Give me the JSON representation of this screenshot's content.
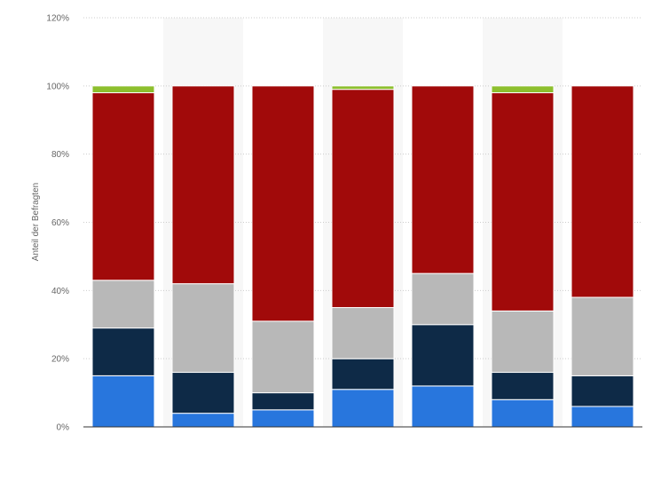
{
  "chart_data": {
    "type": "bar",
    "stacked": true,
    "ylabel": "Anteil der Befragten",
    "ylim": [
      0,
      120
    ],
    "yticks": [
      0,
      20,
      40,
      60,
      80,
      100,
      120
    ],
    "ytick_labels": [
      "0%",
      "20%",
      "40%",
      "60%",
      "80%",
      "100%",
      "120%"
    ],
    "grid": true,
    "categories": [
      "",
      "",
      "",
      "",
      "",
      "",
      ""
    ],
    "series": [
      {
        "color": "#2876dd",
        "values": [
          15,
          4,
          5,
          11,
          12,
          8,
          6
        ]
      },
      {
        "color": "#0e2a47",
        "values": [
          14,
          12,
          5,
          9,
          18,
          8,
          9
        ]
      },
      {
        "color": "#b8b8b8",
        "values": [
          14,
          26,
          21,
          15,
          15,
          18,
          23
        ]
      },
      {
        "color": "#a10a0a",
        "values": [
          55,
          58,
          69,
          64,
          55,
          64,
          62
        ]
      },
      {
        "color": "#8dbf2e",
        "values": [
          2,
          0,
          0,
          1,
          0,
          2,
          0
        ]
      }
    ]
  }
}
